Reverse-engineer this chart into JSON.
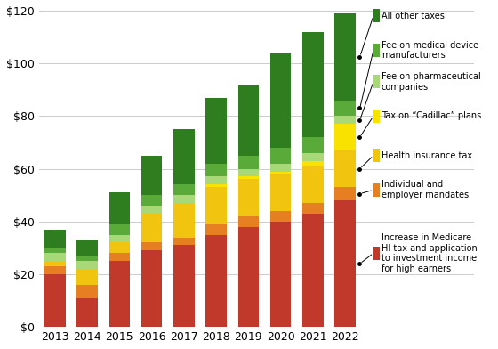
{
  "years": [
    2013,
    2014,
    2015,
    2016,
    2017,
    2018,
    2019,
    2020,
    2021,
    2022
  ],
  "segments": {
    "medicare_hi": [
      20,
      11,
      25,
      29,
      31,
      35,
      38,
      40,
      43,
      48
    ],
    "individual_employer": [
      3,
      5,
      3,
      3,
      3,
      4,
      4,
      4,
      4,
      5
    ],
    "health_insurance_tax": [
      2,
      6,
      4,
      11,
      13,
      14,
      14,
      14,
      14,
      14
    ],
    "cadillac": [
      0,
      0,
      0,
      0,
      0,
      1,
      1,
      1,
      2,
      10
    ],
    "pharma": [
      3,
      3,
      3,
      3,
      3,
      3,
      3,
      3,
      3,
      3
    ],
    "medical_device": [
      2,
      2,
      4,
      4,
      4,
      5,
      5,
      6,
      6,
      6
    ],
    "all_other": [
      7,
      6,
      12,
      15,
      21,
      25,
      27,
      36,
      40,
      33
    ]
  },
  "colors": {
    "medicare_hi": "#c0392b",
    "individual_employer": "#e67e22",
    "health_insurance_tax": "#f1c40f",
    "cadillac": "#f9e100",
    "pharma": "#a8d878",
    "medical_device": "#5aaa3a",
    "all_other": "#2e7d1e"
  },
  "labels": {
    "medicare_hi": "Increase in Medicare\nHI tax and application\nto investment income\nfor high earners",
    "individual_employer": "Individual and\nemployer mandates",
    "health_insurance_tax": "Health insurance tax",
    "cadillac": "Tax on “Cadillac” plans",
    "pharma": "Fee on pharmaceutical\ncompanies",
    "medical_device": "Fee on medical device\nmanufacturers",
    "all_other": "All other taxes"
  },
  "ylim": [
    0,
    120
  ],
  "yticks": [
    0,
    20,
    40,
    60,
    80,
    100,
    120
  ],
  "ytick_labels": [
    "$0",
    "$20",
    "$40",
    "$60",
    "$80",
    "$100",
    "$120"
  ],
  "background_color": "#ffffff",
  "grid_color": "#cccccc"
}
